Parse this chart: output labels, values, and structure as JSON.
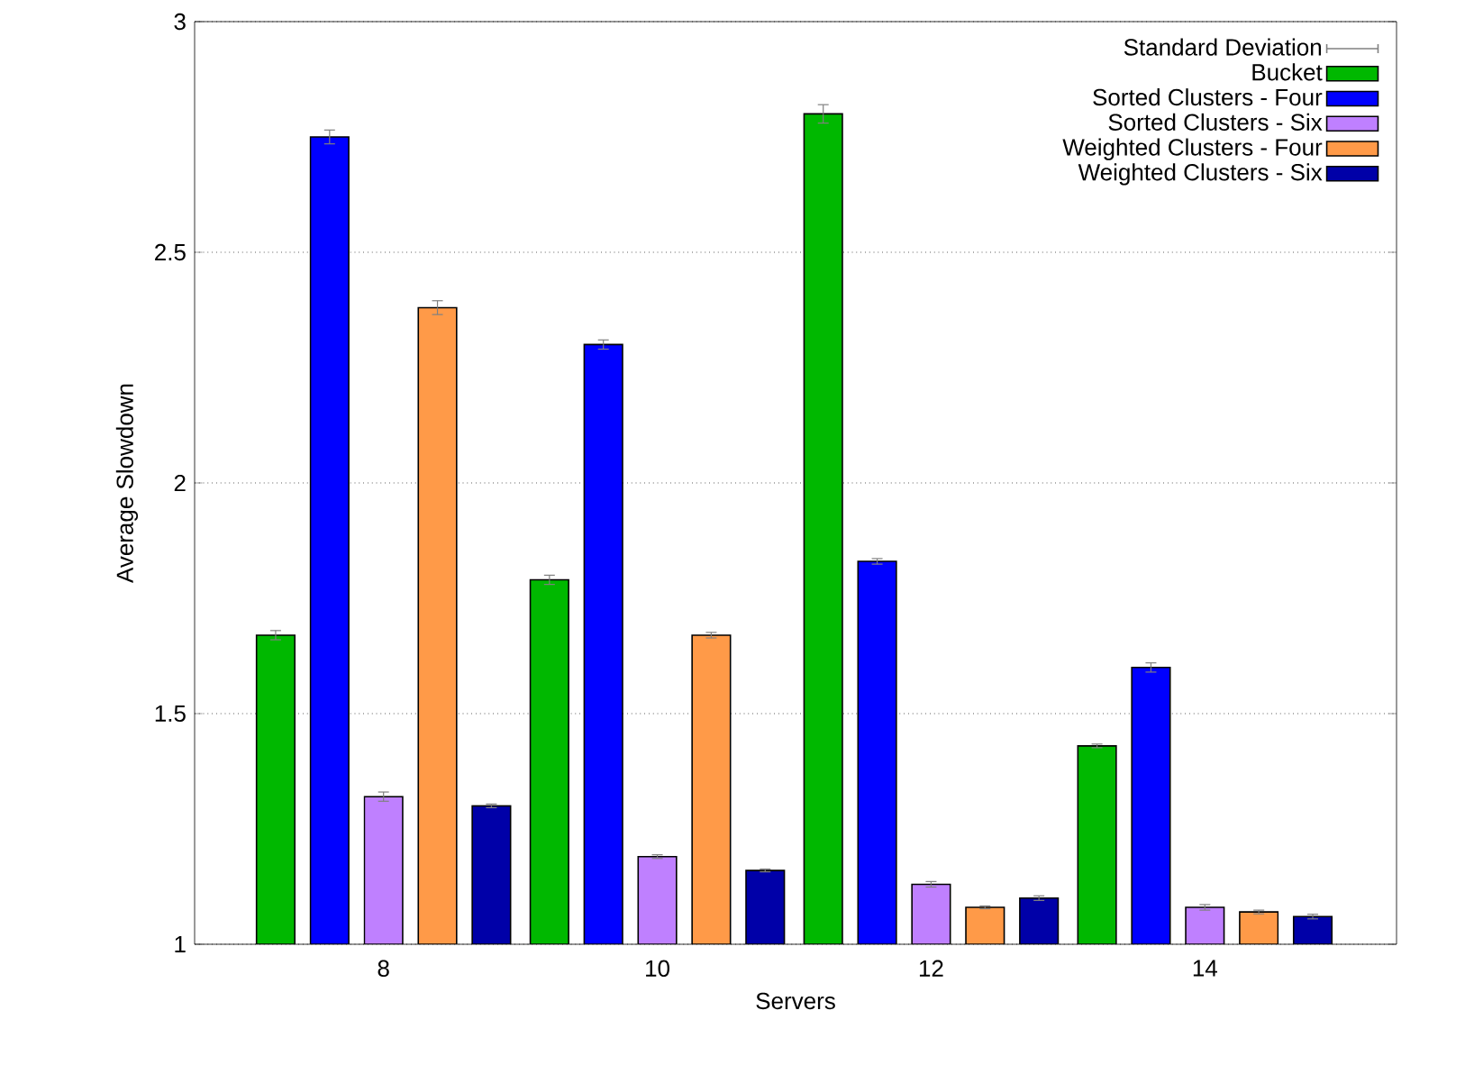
{
  "chart_data": {
    "type": "bar",
    "xlabel": "Servers",
    "ylabel": "Average Slowdown",
    "categories": [
      "8",
      "10",
      "12",
      "14"
    ],
    "series": [
      {
        "name": "Bucket",
        "color": "#00b800",
        "values": [
          1.67,
          1.79,
          2.8,
          1.43
        ],
        "errors": [
          0.01,
          0.01,
          0.02,
          0.004
        ]
      },
      {
        "name": "Sorted Clusters - Four",
        "color": "#0000ff",
        "values": [
          2.75,
          2.3,
          1.83,
          1.6
        ],
        "errors": [
          0.015,
          0.01,
          0.006,
          0.01
        ]
      },
      {
        "name": "Sorted Clusters - Six",
        "color": "#bf80ff",
        "values": [
          1.32,
          1.19,
          1.13,
          1.08
        ],
        "errors": [
          0.01,
          0.004,
          0.006,
          0.006
        ]
      },
      {
        "name": "Weighted Clusters - Four",
        "color": "#ff9a48",
        "values": [
          2.38,
          1.67,
          1.08,
          1.07
        ],
        "errors": [
          0.015,
          0.006,
          0.003,
          0.004
        ]
      },
      {
        "name": "Weighted Clusters - Six",
        "color": "#0000a8",
        "values": [
          1.3,
          1.16,
          1.1,
          1.06
        ],
        "errors": [
          0.004,
          0.003,
          0.005,
          0.005
        ]
      }
    ],
    "annotations": [
      "Standard Deviation"
    ],
    "ylim": [
      1,
      3
    ],
    "yticks": [
      1,
      1.5,
      2,
      2.5,
      3
    ],
    "grid": "y",
    "legend": "top right"
  }
}
